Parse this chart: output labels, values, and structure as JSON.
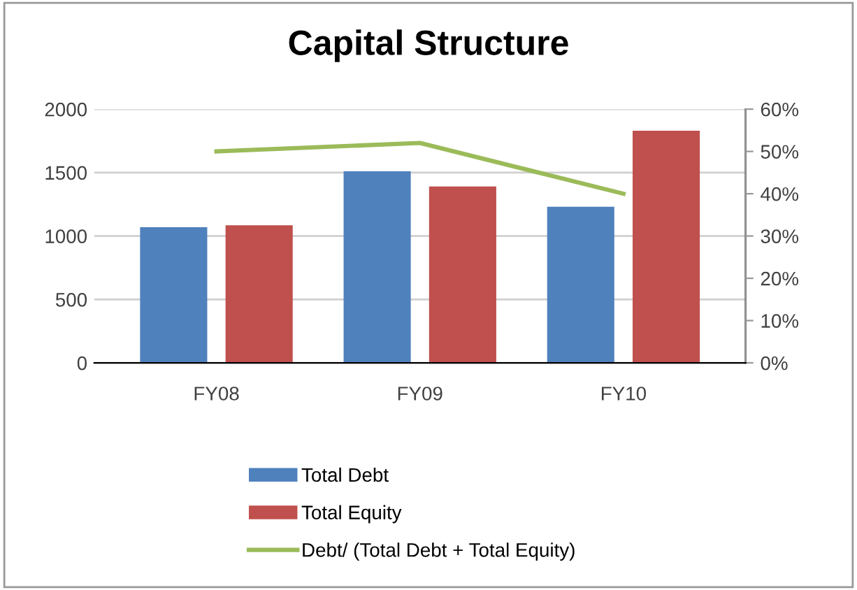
{
  "chart_data": {
    "type": "bar",
    "title": "Capital Structure",
    "categories": [
      "FY08",
      "FY09",
      "FY10"
    ],
    "series": [
      {
        "name": "Total Debt",
        "color": "#4f81bd",
        "values": [
          1070,
          1510,
          1230
        ]
      },
      {
        "name": "Total Equity",
        "color": "#c0504d",
        "values": [
          1085,
          1390,
          1830
        ]
      },
      {
        "name": "Debt/ (Total Debt + Total Equity)",
        "color": "#9bbb59",
        "type": "line",
        "axis": "y2",
        "marker": "none",
        "values": [
          50,
          52,
          40
        ]
      }
    ],
    "ylim": [
      0,
      2000
    ],
    "yticks": [
      0,
      500,
      1000,
      1500,
      2000
    ],
    "y2lim": [
      0,
      60
    ],
    "y2ticks": [
      {
        "value": 0,
        "label": "0%"
      },
      {
        "value": 10,
        "label": "10%"
      },
      {
        "value": 20,
        "label": "20%"
      },
      {
        "value": 30,
        "label": "30%"
      },
      {
        "value": 40,
        "label": "40%"
      },
      {
        "value": 50,
        "label": "50%"
      },
      {
        "value": 60,
        "label": "60%"
      }
    ],
    "grid": "y",
    "legend": "bottom"
  }
}
